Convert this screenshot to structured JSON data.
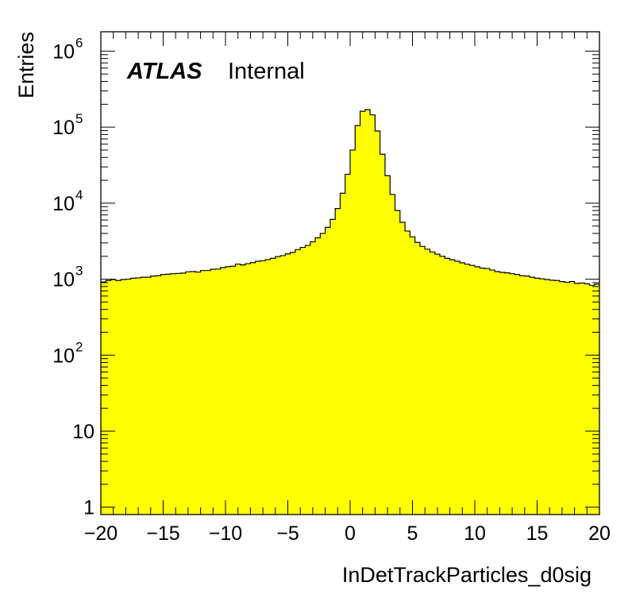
{
  "chart_data": {
    "type": "bar",
    "xlabel": "InDetTrackParticles_d0sig",
    "ylabel": "Entries",
    "xlim": [
      -20,
      20
    ],
    "ylim": [
      0.8,
      1800000
    ],
    "y_scale": "log",
    "x_ticks": [
      "−20",
      "−15",
      "−10",
      "−5",
      "0",
      "5",
      "10",
      "15",
      "20"
    ],
    "y_ticks": [
      {
        "base": "1",
        "exp": ""
      },
      {
        "base": "10",
        "exp": ""
      },
      {
        "base": "10",
        "exp": "2"
      },
      {
        "base": "10",
        "exp": "3"
      },
      {
        "base": "10",
        "exp": "4"
      },
      {
        "base": "10",
        "exp": "5"
      },
      {
        "base": "10",
        "exp": "6"
      }
    ],
    "annotation": {
      "bold": "ATLAS",
      "normal": "Internal"
    },
    "fill_color": "#ffff00",
    "bin_width": 0.4,
    "bin_edges_start": -20,
    "values": [
      920,
      960,
      990,
      960,
      990,
      1000,
      1030,
      1040,
      1060,
      1060,
      1100,
      1110,
      1150,
      1160,
      1180,
      1190,
      1200,
      1250,
      1260,
      1240,
      1300,
      1300,
      1350,
      1360,
      1420,
      1460,
      1480,
      1580,
      1540,
      1600,
      1650,
      1720,
      1750,
      1810,
      1880,
      1980,
      2040,
      2150,
      2250,
      2450,
      2620,
      2780,
      3100,
      3500,
      4000,
      4800,
      6100,
      8500,
      13500,
      24000,
      50000,
      105000,
      162000,
      170000,
      145000,
      89000,
      44000,
      23000,
      13000,
      8000,
      5600,
      4300,
      3600,
      3050,
      2700,
      2480,
      2280,
      2130,
      2000,
      1880,
      1800,
      1720,
      1640,
      1570,
      1520,
      1460,
      1400,
      1380,
      1320,
      1260,
      1230,
      1210,
      1180,
      1150,
      1110,
      1100,
      1060,
      1030,
      1010,
      990,
      970,
      960,
      930,
      910,
      930,
      880,
      890,
      870,
      830,
      860
    ]
  }
}
